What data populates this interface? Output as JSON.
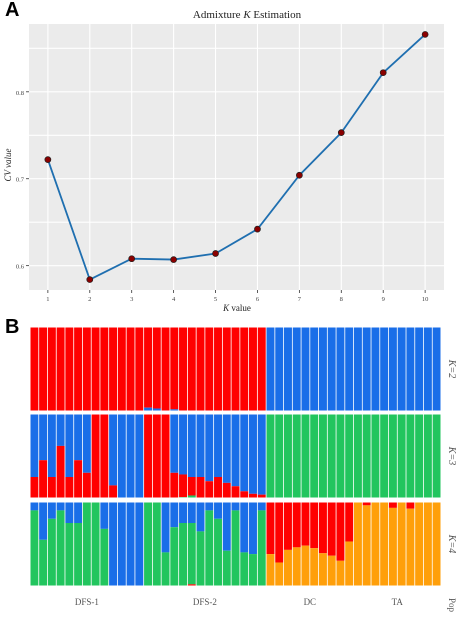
{
  "panels": {
    "a": "A",
    "b": "B"
  },
  "chart_data": [
    {
      "type": "line",
      "title": "Admixture K Estimation",
      "title_prefix": "Admixture ",
      "title_italic": "K",
      "title_suffix": " Estimation",
      "xlabel_italic": "K",
      "xlabel_suffix": " value",
      "ylabel": "CV value",
      "x": [
        1,
        2,
        3,
        4,
        5,
        6,
        7,
        8,
        9,
        10
      ],
      "x_ticks": [
        "1",
        "2",
        "3",
        "4",
        "5",
        "6",
        "7",
        "8",
        "9",
        "10"
      ],
      "y": [
        0.722,
        0.584,
        0.608,
        0.607,
        0.614,
        0.642,
        0.704,
        0.753,
        0.822,
        0.866
      ],
      "y_ticks": [
        "0.6",
        "0.7",
        "0.8"
      ],
      "ylim": [
        0.572,
        0.878
      ],
      "xlim": [
        0.55,
        10.45
      ],
      "grid": true,
      "colors": {
        "line": "#1f6fb0",
        "point": "#8b0000",
        "panel_bg": "#ebebeb"
      }
    },
    {
      "type": "bar",
      "stacked": true,
      "n_individuals": 47,
      "groups": [
        {
          "label": "DFS-1",
          "count": 13
        },
        {
          "label": "DFS-2",
          "count": 14
        },
        {
          "label": "DC",
          "count": 10
        },
        {
          "label": "TA",
          "count": 10
        }
      ],
      "pop_label": "Pop",
      "rows": [
        {
          "label": "K=2",
          "colors": [
            "#ff0000",
            "#1a6ee8"
          ],
          "values": [
            [
              1,
              0
            ],
            [
              1,
              0
            ],
            [
              1,
              0
            ],
            [
              1,
              0
            ],
            [
              1,
              0
            ],
            [
              1,
              0
            ],
            [
              1,
              0
            ],
            [
              1,
              0
            ],
            [
              1,
              0
            ],
            [
              1,
              0
            ],
            [
              1,
              0
            ],
            [
              1,
              0
            ],
            [
              1,
              0
            ],
            [
              0.96,
              0.04
            ],
            [
              0.97,
              0.03
            ],
            [
              1,
              0
            ],
            [
              0.98,
              0.02
            ],
            [
              1,
              0
            ],
            [
              1,
              0
            ],
            [
              1,
              0
            ],
            [
              1,
              0
            ],
            [
              1,
              0
            ],
            [
              1,
              0
            ],
            [
              1,
              0
            ],
            [
              1,
              0
            ],
            [
              1,
              0
            ],
            [
              1,
              0
            ],
            [
              0,
              1
            ],
            [
              0,
              1
            ],
            [
              0,
              1
            ],
            [
              0,
              1
            ],
            [
              0,
              1
            ],
            [
              0,
              1
            ],
            [
              0,
              1
            ],
            [
              0,
              1
            ],
            [
              0,
              1
            ],
            [
              0,
              1
            ],
            [
              0,
              1
            ],
            [
              0,
              1
            ],
            [
              0,
              1
            ],
            [
              0,
              1
            ],
            [
              0,
              1
            ],
            [
              0,
              1
            ],
            [
              0,
              1
            ],
            [
              0,
              1
            ],
            [
              0,
              1
            ],
            [
              0,
              1
            ]
          ]
        },
        {
          "label": "K=3",
          "colors": [
            "#1a6ee8",
            "#ff0000",
            "#22c55e"
          ],
          "values": [
            [
              0.75,
              0.25,
              0
            ],
            [
              0.55,
              0.45,
              0
            ],
            [
              0.75,
              0.25,
              0
            ],
            [
              0.38,
              0.62,
              0
            ],
            [
              0.75,
              0.25,
              0
            ],
            [
              0.55,
              0.45,
              0
            ],
            [
              0.7,
              0.3,
              0
            ],
            [
              0,
              1,
              0
            ],
            [
              0,
              1,
              0
            ],
            [
              0.85,
              0.15,
              0
            ],
            [
              1,
              0,
              0
            ],
            [
              1,
              0,
              0
            ],
            [
              1,
              0,
              0
            ],
            [
              0,
              1,
              0
            ],
            [
              0,
              1,
              0
            ],
            [
              0,
              1,
              0
            ],
            [
              0.7,
              0.3,
              0
            ],
            [
              0.72,
              0.27,
              0.01
            ],
            [
              0.75,
              0.22,
              0.03
            ],
            [
              0.75,
              0.25,
              0
            ],
            [
              0.8,
              0.2,
              0
            ],
            [
              0.75,
              0.25,
              0
            ],
            [
              0.82,
              0.18,
              0
            ],
            [
              0.86,
              0.14,
              0
            ],
            [
              0.92,
              0.08,
              0
            ],
            [
              0.95,
              0.05,
              0
            ],
            [
              0.96,
              0.04,
              0
            ],
            [
              0,
              0,
              1
            ],
            [
              0,
              0,
              1
            ],
            [
              0,
              0,
              1
            ],
            [
              0,
              0,
              1
            ],
            [
              0,
              0,
              1
            ],
            [
              0,
              0,
              1
            ],
            [
              0,
              0,
              1
            ],
            [
              0,
              0,
              1
            ],
            [
              0,
              0,
              1
            ],
            [
              0,
              0,
              1
            ],
            [
              0,
              0,
              1
            ],
            [
              0,
              0,
              1
            ],
            [
              0,
              0,
              1
            ],
            [
              0,
              0,
              1
            ],
            [
              0,
              0,
              1
            ],
            [
              0,
              0,
              1
            ],
            [
              0,
              0,
              1
            ],
            [
              0,
              0,
              1
            ],
            [
              0,
              0,
              1
            ],
            [
              0,
              0,
              1
            ]
          ]
        },
        {
          "label": "K=4",
          "colors": [
            "#1a6ee8",
            "#22c55e",
            "#ff0000",
            "#ff9f0a"
          ],
          "values": [
            [
              0.1,
              0.9,
              0,
              0
            ],
            [
              0.45,
              0.55,
              0,
              0
            ],
            [
              0.2,
              0.8,
              0,
              0
            ],
            [
              0.1,
              0.9,
              0,
              0
            ],
            [
              0.25,
              0.75,
              0,
              0
            ],
            [
              0.25,
              0.75,
              0,
              0
            ],
            [
              0,
              1,
              0,
              0
            ],
            [
              0,
              1,
              0,
              0
            ],
            [
              0.32,
              0.68,
              0,
              0
            ],
            [
              1,
              0,
              0,
              0
            ],
            [
              1,
              0,
              0,
              0
            ],
            [
              1,
              0,
              0,
              0
            ],
            [
              1,
              0,
              0,
              0
            ],
            [
              0,
              1,
              0,
              0
            ],
            [
              0,
              1,
              0,
              0
            ],
            [
              0.6,
              0.4,
              0,
              0
            ],
            [
              0.3,
              0.7,
              0,
              0
            ],
            [
              0.25,
              0.75,
              0,
              0
            ],
            [
              0.25,
              0.73,
              0.02,
              0
            ],
            [
              0.35,
              0.65,
              0,
              0
            ],
            [
              0.1,
              0.9,
              0,
              0
            ],
            [
              0.2,
              0.8,
              0,
              0
            ],
            [
              0.58,
              0.42,
              0,
              0
            ],
            [
              0.1,
              0.9,
              0,
              0
            ],
            [
              0.6,
              0.4,
              0,
              0
            ],
            [
              0.62,
              0.38,
              0,
              0
            ],
            [
              0.1,
              0.9,
              0,
              0
            ],
            [
              0,
              0,
              0.62,
              0.38
            ],
            [
              0,
              0,
              0.72,
              0.28
            ],
            [
              0,
              0,
              0.57,
              0.43
            ],
            [
              0,
              0,
              0.54,
              0.46
            ],
            [
              0,
              0,
              0.52,
              0.48
            ],
            [
              0,
              0,
              0.55,
              0.45
            ],
            [
              0,
              0,
              0.61,
              0.39
            ],
            [
              0,
              0,
              0.64,
              0.36
            ],
            [
              0,
              0,
              0.7,
              0.3
            ],
            [
              0,
              0,
              0.47,
              0.53
            ],
            [
              0,
              0,
              0,
              1
            ],
            [
              0,
              0,
              0.04,
              0.96
            ],
            [
              0,
              0,
              0,
              1
            ],
            [
              0,
              0,
              0,
              1
            ],
            [
              0,
              0,
              0.07,
              0.93
            ],
            [
              0,
              0,
              0,
              1
            ],
            [
              0,
              0,
              0.08,
              0.92
            ],
            [
              0,
              0,
              0,
              1
            ],
            [
              0,
              0,
              0,
              1
            ],
            [
              0,
              0,
              0,
              1
            ]
          ]
        }
      ]
    }
  ]
}
